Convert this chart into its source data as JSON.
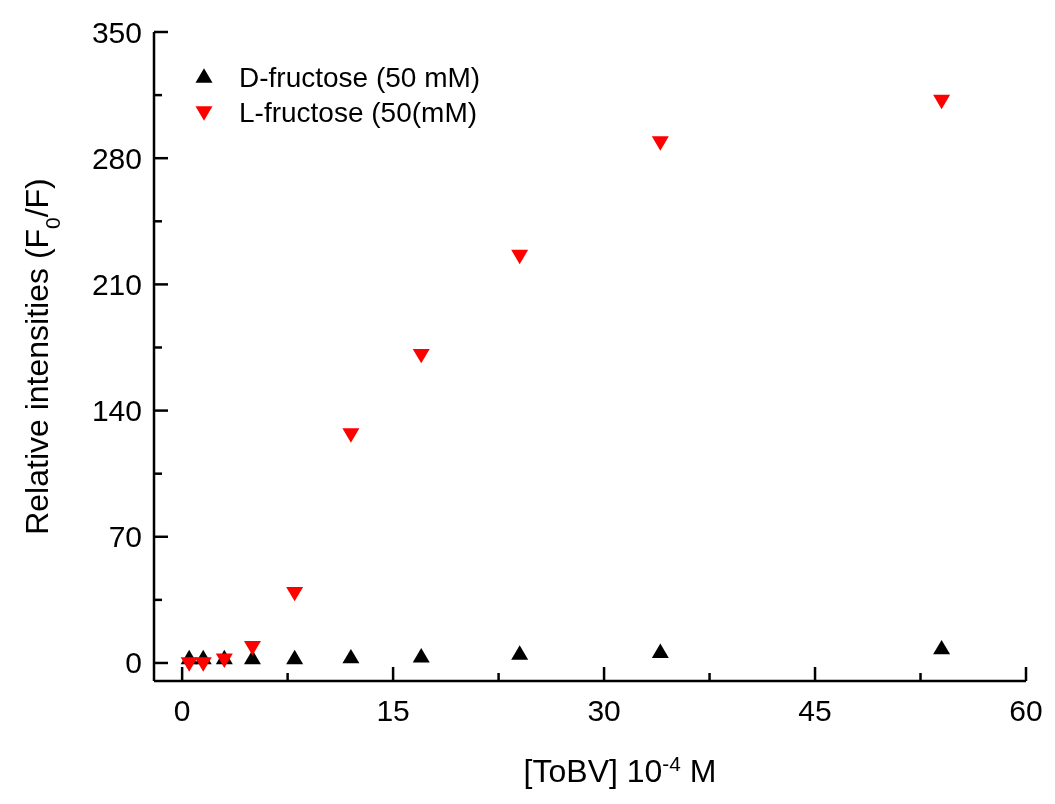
{
  "chart_data": {
    "type": "scatter",
    "xlabel": "[ToBV] 10$^{-4}$ M",
    "ylabel": "Relative intensities (F$_{0}$/F)",
    "xlim": [
      -2,
      60
    ],
    "xticks": [
      0,
      {
        "value": 7.5,
        "label": null
      },
      15,
      {
        "value": 22.5,
        "label": null
      },
      30,
      {
        "value": 37.5,
        "label": null
      },
      45,
      {
        "value": 52.5,
        "label": null
      },
      60
    ],
    "ylim": [
      -10,
      350
    ],
    "yticks": [
      0,
      {
        "value": 35,
        "label": null
      },
      70,
      {
        "value": 105,
        "label": null
      },
      140,
      {
        "value": 175,
        "label": null
      },
      210,
      {
        "value": 245,
        "label": null
      },
      280,
      {
        "value": 315,
        "label": null
      },
      350
    ],
    "grid": false,
    "legend": "top left",
    "series": [
      {
        "name": "D-fructose (50 mM)",
        "color": "#000000",
        "marker": "triangle",
        "x": [
          0.5,
          1.5,
          3,
          5,
          8,
          12,
          17,
          24,
          34,
          54
        ],
        "values": [
          2.5,
          2.5,
          2.5,
          2.5,
          2.5,
          3,
          3.5,
          5,
          6,
          8
        ]
      },
      {
        "name": "L-fructose (50(mM)",
        "color": "#ff0000",
        "marker": "triangle-down",
        "x": [
          0.5,
          1.5,
          3,
          5,
          8,
          12,
          17,
          24,
          34,
          54
        ],
        "values": [
          0,
          0,
          2,
          9,
          39,
          127,
          171,
          226,
          289,
          312
        ]
      }
    ]
  }
}
